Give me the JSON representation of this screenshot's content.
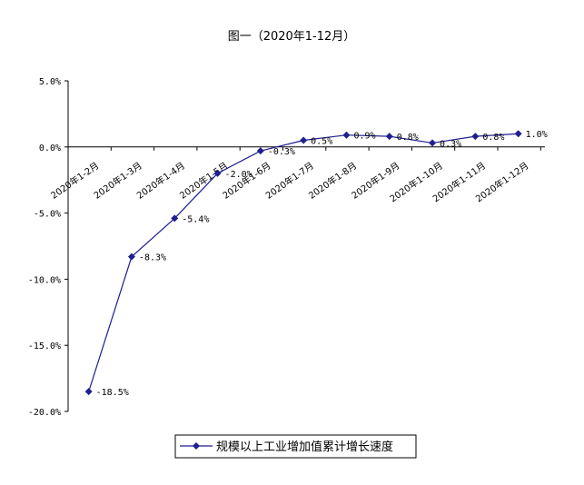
{
  "chart_data": {
    "type": "line",
    "title": "图一（2020年1-12月）",
    "categories": [
      "2020年1-2月",
      "2020年1-3月",
      "2020年1-4月",
      "2020年1-5月",
      "2020年1-6月",
      "2020年1-7月",
      "2020年1-8月",
      "2020年1-9月",
      "2020年1-10月",
      "2020年1-11月",
      "2020年1-12月"
    ],
    "x_positions": [
      1,
      2,
      3,
      4,
      5,
      6,
      7,
      8,
      9,
      10,
      11,
      12
    ],
    "values": [
      -18.5,
      -8.3,
      -5.4,
      -2.0,
      -0.3,
      0.5,
      0.9,
      0.8,
      0.3,
      0.8,
      1.0
    ],
    "point_x": [
      1,
      2,
      3,
      4,
      5,
      6,
      7,
      8,
      9,
      10,
      11
    ],
    "all_values": [
      -18.5,
      -8.3,
      -5.4,
      -2.0,
      -0.3,
      0.5,
      0.9,
      0.8,
      0.3,
      0.8,
      1.0
    ],
    "data_labels": [
      "-18.5%",
      "-8.3%",
      "-5.4%",
      "-2.0%",
      "-0.3%",
      "0.5%",
      "0.9%",
      "0.8%",
      "0.3%",
      "0.8%",
      "1.0%"
    ],
    "yticks": [
      "5.0%",
      "0.0%",
      "-5.0%",
      "-10.0%",
      "-15.0%",
      "-20.0%"
    ],
    "ytick_values": [
      5,
      0,
      -5,
      -10,
      -15,
      -20
    ],
    "ylim": [
      -20,
      5
    ],
    "legend": "规模以上工业增加值累计增长速度",
    "legend_position": "bottom",
    "series_color": "#1f1f8f",
    "grid": false
  }
}
